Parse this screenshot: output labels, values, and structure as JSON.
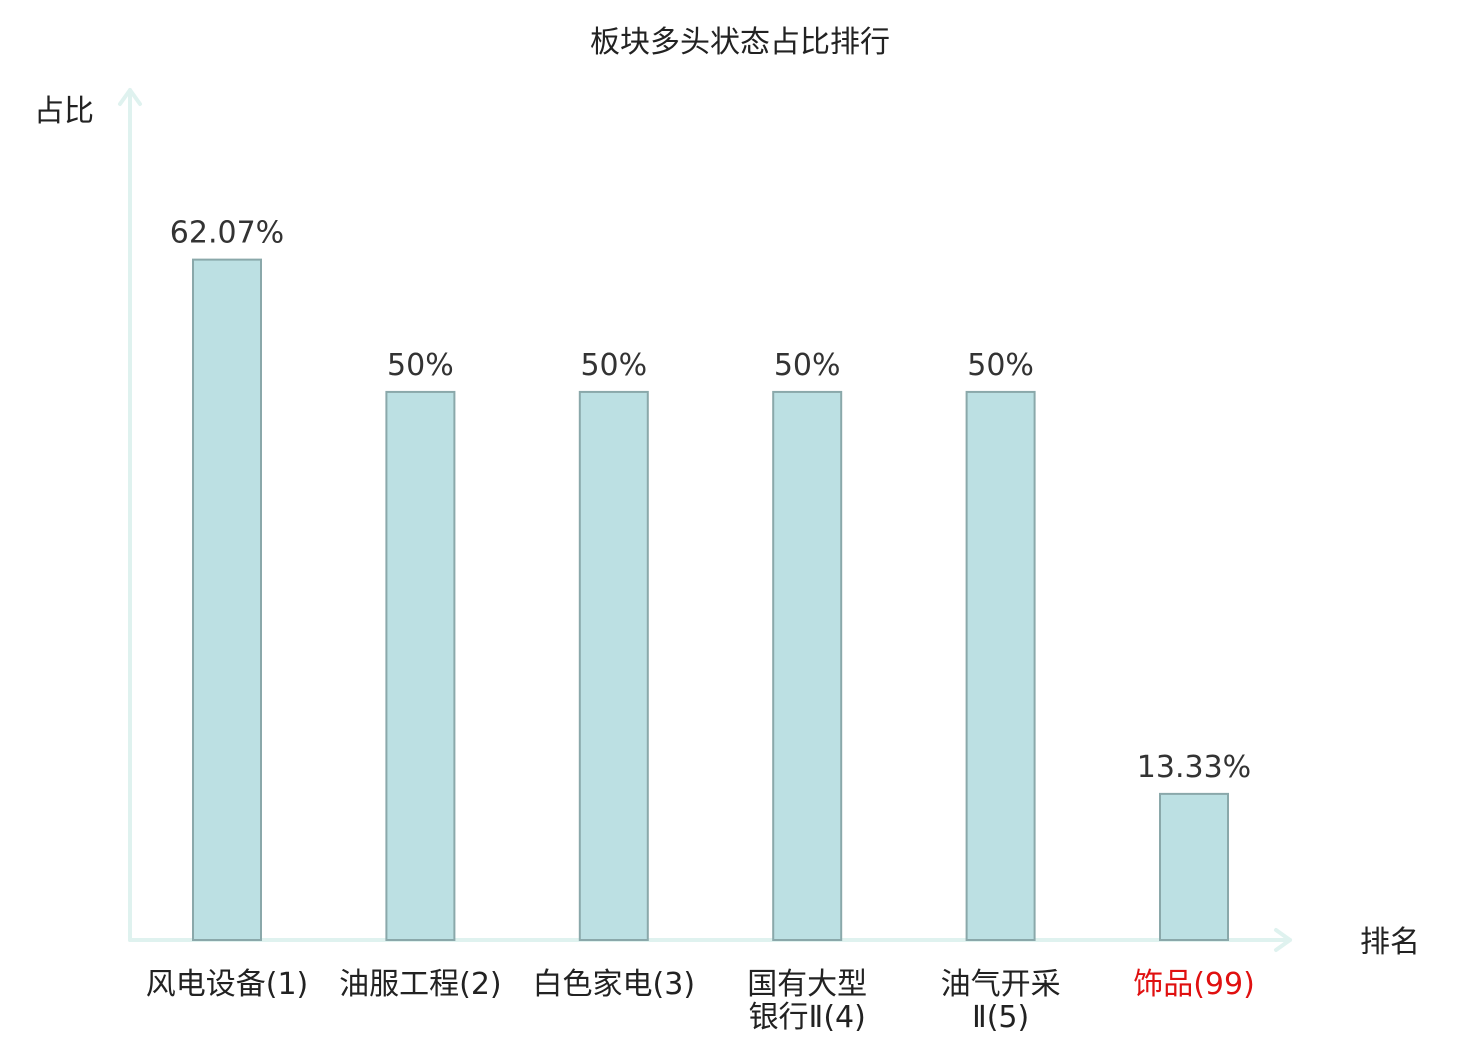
{
  "chart_data": {
    "type": "bar",
    "title": "板块多头状态占比排行",
    "ylabel": "占比",
    "xlabel": "排名",
    "categories": [
      [
        "风电设备(1)"
      ],
      [
        "油服工程(2)"
      ],
      [
        "白色家电(3)"
      ],
      [
        "国有大型",
        "银行Ⅱ(4)"
      ],
      [
        "油气开采",
        "Ⅱ(5)"
      ],
      [
        "饰品(99)"
      ]
    ],
    "values": [
      62.07,
      50,
      50,
      50,
      50,
      13.33
    ],
    "value_labels": [
      "62.07%",
      "50%",
      "50%",
      "50%",
      "50%",
      "13.33%"
    ],
    "highlight_index": 5,
    "ylim": [
      0,
      78
    ],
    "grid": false,
    "legend": "none"
  },
  "colors": {
    "bar_fill": "#bce0e3",
    "bar_stroke": "#8aa8aa",
    "axis": "#dff2ef",
    "text": "#333333",
    "highlight_text": "#e01010"
  }
}
